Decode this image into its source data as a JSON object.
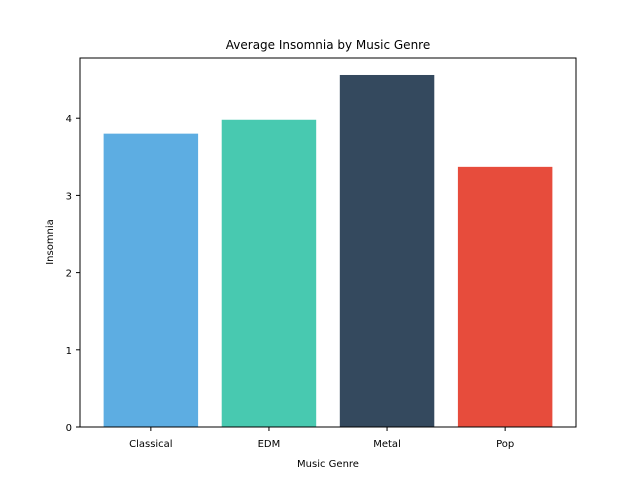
{
  "chart_data": {
    "type": "bar",
    "title": "Average Insomnia by Music Genre",
    "xlabel": "Music Genre",
    "ylabel": "Insomnia",
    "categories": [
      "Classical",
      "EDM",
      "Metal",
      "Pop"
    ],
    "values": [
      3.8,
      3.98,
      4.56,
      3.37
    ],
    "colors": [
      "#5dade2",
      "#48c9b0",
      "#34495e",
      "#e74c3c"
    ],
    "ylim": [
      0,
      4.78
    ],
    "yticks": [
      0,
      1,
      2,
      3,
      4
    ],
    "grid": false,
    "legend": "none"
  }
}
